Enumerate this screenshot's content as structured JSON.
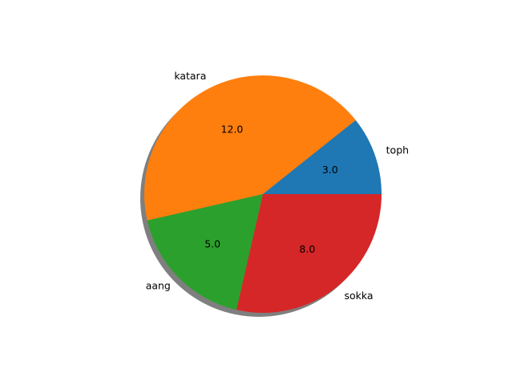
{
  "chart_data": {
    "type": "pie",
    "title": "",
    "shadow": true,
    "start_angle_deg": 0,
    "direction": "counterclockwise",
    "slices": [
      {
        "label": "toph",
        "value": 3,
        "value_label": "3.0",
        "color": "#1f77b4"
      },
      {
        "label": "katara",
        "value": 12,
        "value_label": "12.0",
        "color": "#ff7f0e"
      },
      {
        "label": "aang",
        "value": 5,
        "value_label": "5.0",
        "color": "#2ca02c"
      },
      {
        "label": "sokka",
        "value": 8,
        "value_label": "8.0",
        "color": "#d62728"
      }
    ]
  }
}
